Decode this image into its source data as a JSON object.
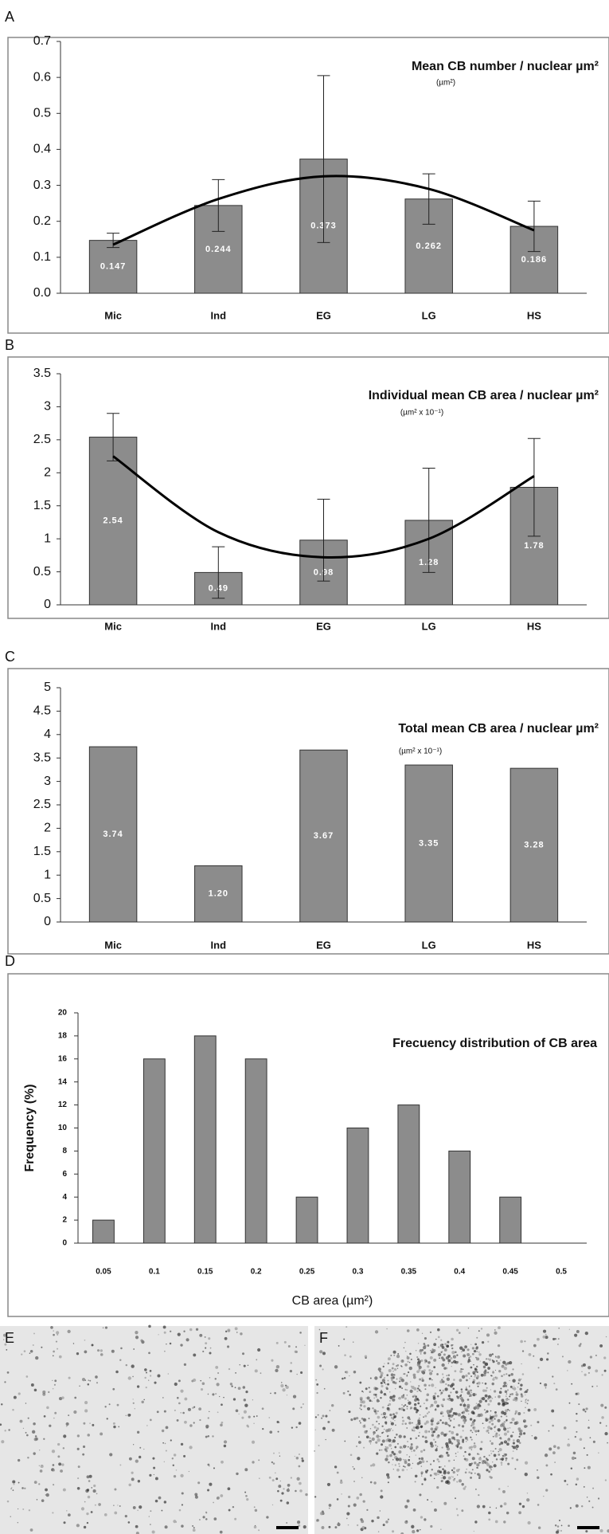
{
  "chart_data": [
    {
      "panel": "A",
      "type": "bar",
      "title": "Mean CB number / nuclear µm²",
      "subtitle": "(µm²)",
      "categories": [
        "Mic",
        "Ind",
        "EG",
        "LG",
        "HS"
      ],
      "values": [
        0.147,
        0.244,
        0.373,
        0.262,
        0.186
      ],
      "errors": [
        0.02,
        0.072,
        0.232,
        0.07,
        0.07
      ],
      "trend": [
        0.135,
        0.262,
        0.325,
        0.29,
        0.175
      ],
      "show_values": true,
      "color": "#8c8c8c",
      "ylim": [
        0,
        0.7
      ],
      "yticks": [
        {
          "value": 0,
          "label": "0.0"
        },
        0.1,
        0.2,
        0.3,
        0.4,
        0.5,
        0.6,
        0.7
      ]
    },
    {
      "panel": "B",
      "type": "bar",
      "title": "Individual mean CB area / nuclear µm²",
      "subtitle": "(µm² x 10⁻¹)",
      "categories": [
        "Mic",
        "Ind",
        "EG",
        "LG",
        "HS"
      ],
      "values": [
        2.54,
        0.49,
        0.98,
        1.28,
        1.78
      ],
      "errors": [
        0.36,
        0.39,
        0.62,
        0.79,
        0.74
      ],
      "trend": [
        2.25,
        1.1,
        0.72,
        1.0,
        1.95
      ],
      "show_values": true,
      "color": "#8c8c8c",
      "ylim": [
        0,
        3.5
      ],
      "yticks": [
        0,
        0.5,
        1,
        1.5,
        2,
        2.5,
        3,
        3.5
      ]
    },
    {
      "panel": "C",
      "type": "bar",
      "title": "Total mean CB area / nuclear µm²",
      "subtitle": "(µm² x 10⁻¹)",
      "categories": [
        "Mic",
        "Ind",
        "EG",
        "LG",
        "HS"
      ],
      "values": [
        3.74,
        1.2,
        3.67,
        3.35,
        3.28
      ],
      "value_labels": [
        "3.74",
        "1.20",
        "3.67",
        "3.35",
        "3.28"
      ],
      "show_values": true,
      "color": "#8c8c8c",
      "ylim": [
        0,
        5
      ],
      "yticks": [
        0,
        0.5,
        1,
        1.5,
        2,
        2.5,
        3,
        3.5,
        4,
        4.5,
        5
      ]
    },
    {
      "panel": "D",
      "type": "bar",
      "title": "Frecuency distribution of CB area",
      "x_label": "CB area (µm²)",
      "y_label": "Frequency (%)",
      "categories": [
        "0.05",
        "0.1",
        "0.15",
        "0.2",
        "0.25",
        "0.3",
        "0.35",
        "0.4",
        "0.45",
        "0.5"
      ],
      "values": [
        2,
        16,
        18,
        16,
        4,
        10,
        12,
        8,
        4,
        null
      ],
      "color": "#8c8c8c",
      "ylim": [
        0,
        20
      ],
      "yticks": [
        0,
        2,
        4,
        6,
        8,
        10,
        12,
        14,
        16,
        18,
        20
      ]
    }
  ],
  "images": [
    {
      "panel": "E"
    },
    {
      "panel": "F"
    }
  ]
}
